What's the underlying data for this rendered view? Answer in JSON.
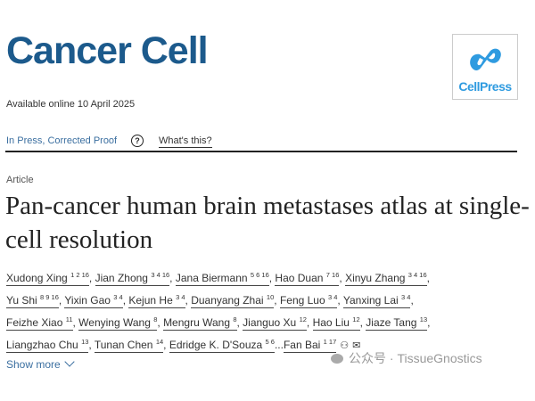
{
  "header": {
    "journal": "Cancer Cell",
    "logo_text": "CellPress",
    "available": "Available online 10 April 2025",
    "status": "In Press, Corrected Proof",
    "help_icon": "question-circle-icon",
    "whats_this": "What's this?"
  },
  "article": {
    "type": "Article",
    "title": "Pan-cancer human brain metastases atlas at single-cell resolution",
    "authors": [
      {
        "name": "Xudong Xing",
        "sup": "1 2 16"
      },
      {
        "name": "Jian Zhong",
        "sup": "3 4 16"
      },
      {
        "name": "Jana Biermann",
        "sup": "5 6 16"
      },
      {
        "name": "Hao Duan",
        "sup": "7 16"
      },
      {
        "name": "Xinyu Zhang",
        "sup": "3 4 16"
      },
      {
        "name": "Yu Shi",
        "sup": "8 9 16"
      },
      {
        "name": "Yixin Gao",
        "sup": "3 4"
      },
      {
        "name": "Kejun He",
        "sup": "3 4"
      },
      {
        "name": "Duanyang Zhai",
        "sup": "10"
      },
      {
        "name": "Feng Luo",
        "sup": "3 4"
      },
      {
        "name": "Yanxing Lai",
        "sup": "3 4"
      },
      {
        "name": "Feizhe Xiao",
        "sup": "11"
      },
      {
        "name": "Wenying Wang",
        "sup": "8"
      },
      {
        "name": "Mengru Wang",
        "sup": "8"
      },
      {
        "name": "Jianguo Xu",
        "sup": "12"
      },
      {
        "name": "Hao Liu",
        "sup": "12"
      },
      {
        "name": "Jiaze Tang",
        "sup": "13"
      },
      {
        "name": "Liangzhao Chu",
        "sup": "13"
      },
      {
        "name": "Tunan Chen",
        "sup": "14"
      },
      {
        "name": "Edridge K. D'Souza",
        "sup": "5 6"
      },
      {
        "name": "Fan Bai",
        "sup": "1 17"
      }
    ],
    "ellipsis": "...",
    "corresponding_icons": [
      "person-icon",
      "envelope-icon"
    ],
    "show_more": "Show more"
  },
  "watermark": "公众号 · TissueGnostics",
  "colors": {
    "brand": "#1c5a8c",
    "link": "#3b6fa0",
    "cellpress": "#2f9be0"
  }
}
